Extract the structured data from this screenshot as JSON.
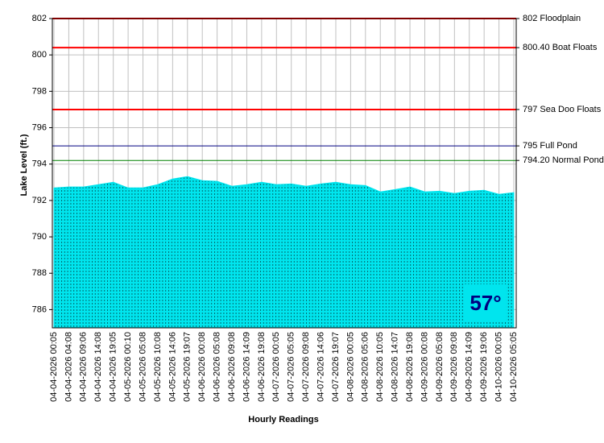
{
  "chart_data": {
    "type": "area",
    "x_label": "Hourly Readings",
    "y_label": "Lake Level (ft.)",
    "badge": "57°",
    "categories": [
      "04-04-2026 00:05",
      "04-04-2026 04:08",
      "04-04-2026 09:06",
      "04-04-2026 14:08",
      "04-04-2026 19:05",
      "04-05-2026 00:10",
      "04-05-2026 05:08",
      "04-05-2026 10:08",
      "04-05-2026 14:06",
      "04-05-2026 19:07",
      "04-06-2026 00:08",
      "04-06-2026 05:08",
      "04-06-2026 09:08",
      "04-06-2026 14:09",
      "04-06-2026 19:08",
      "04-07-2026 00:05",
      "04-07-2026 05:05",
      "04-07-2026 09:08",
      "04-07-2026 14:06",
      "04-07-2026 19:07",
      "04-08-2026 00:05",
      "04-08-2026 05:06",
      "04-08-2026 10:05",
      "04-08-2026 14:07",
      "04-08-2026 19:08",
      "04-09-2026 00:08",
      "04-09-2026 05:08",
      "04-09-2026 09:08",
      "04-09-2026 14:09",
      "04-09-2026 19:06",
      "04-10-2026 00:05",
      "04-10-2026 05:05"
    ],
    "values": [
      792.69,
      792.74,
      792.74,
      792.87,
      793.0,
      792.69,
      792.69,
      792.87,
      793.18,
      793.31,
      793.09,
      793.05,
      792.78,
      792.87,
      793.0,
      792.87,
      792.91,
      792.78,
      792.91,
      793.0,
      792.87,
      792.82,
      792.47,
      792.6,
      792.74,
      792.47,
      792.51,
      792.38,
      792.51,
      792.56,
      792.34,
      792.43
    ],
    "color": "#00e5ee",
    "ylim": [
      785,
      802
    ],
    "yticks": [
      786,
      788,
      790,
      792,
      794,
      796,
      798,
      800,
      802
    ],
    "grid": true,
    "reference_lines": [
      {
        "value": 802,
        "label": "802 Floodplain",
        "color": "#ff0000"
      },
      {
        "value": 800.4,
        "label": "800.40 Boat Floats",
        "color": "#ff0000"
      },
      {
        "value": 797,
        "label": "797 Sea Doo Floats",
        "color": "#ff0000"
      },
      {
        "value": 795,
        "label": "795 Full Pond",
        "color": "#000080"
      },
      {
        "value": 794.2,
        "label": "794.20 Normal Pond",
        "color": "#008000"
      }
    ]
  }
}
